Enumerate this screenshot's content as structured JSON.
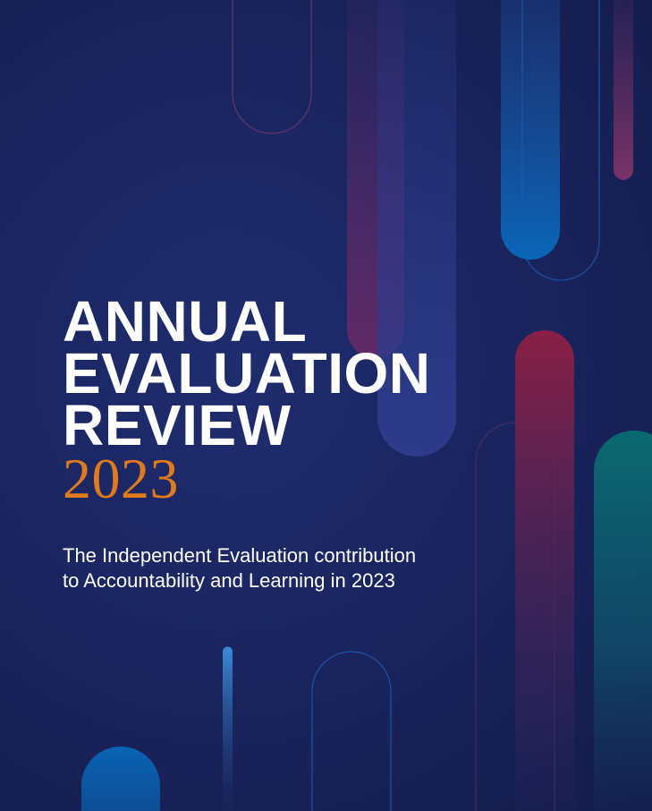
{
  "cover": {
    "title_lines": [
      "ANNUAL",
      "EVALUATION",
      "REVIEW"
    ],
    "year": "2023",
    "subtitle_lines": [
      "The Independent Evaluation contribution",
      "to Accountability and Learning in 2023"
    ],
    "colors": {
      "background": "#1a2560",
      "title": "#ffffff",
      "year": "#e07b1c",
      "subtitle": "#ffffff",
      "accent_blue": "#0a66b8",
      "accent_crimson": "#8a1f45",
      "accent_teal": "#0a6a70"
    }
  }
}
